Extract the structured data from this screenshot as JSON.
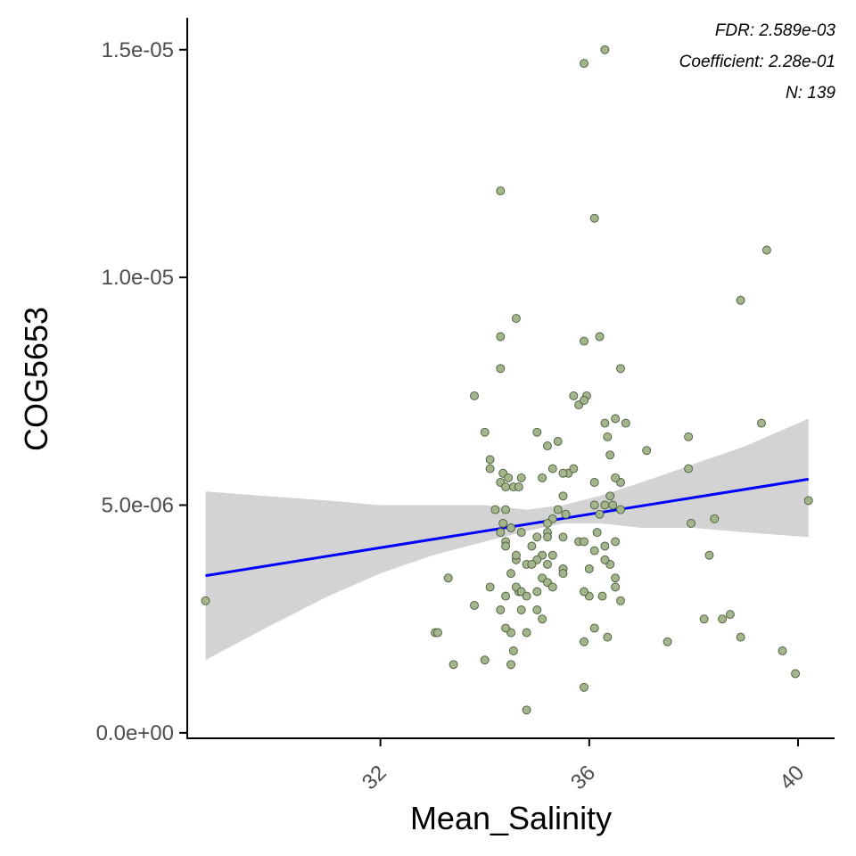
{
  "chart_data": {
    "type": "scatter",
    "xlabel": "Mean_Salinity",
    "ylabel": "COG5653",
    "xlim": [
      28.3,
      40.7
    ],
    "ylim": [
      -1.2e-07,
      1.57e-05
    ],
    "x_ticks": [
      32,
      36,
      40
    ],
    "x_tick_labels": [
      "32",
      "36",
      "40"
    ],
    "y_ticks": [
      0,
      5e-06,
      1e-05,
      1.5e-05
    ],
    "y_tick_labels": [
      "0.0e+00",
      "5.0e-06",
      "1.0e-05",
      "1.5e-05"
    ],
    "grid": false,
    "annotations": [
      "FDR: 2.589e-03",
      "Coefficient: 2.28e-01",
      "N: 139"
    ],
    "colors": {
      "points_fill": "#a3b58c",
      "points_edge": "#4a5a3a",
      "trend_line": "#0000ff",
      "confidence_band": "#d3d3d3",
      "axis": "#000000",
      "tick_label": "#4d4d4d"
    },
    "trend": {
      "x": [
        28.65,
        40.2
      ],
      "y": [
        3.45e-06,
        5.57e-06
      ]
    },
    "confidence_band": {
      "x": [
        28.65,
        29.8,
        31,
        32,
        33,
        34,
        34.8,
        35.5,
        36.2,
        37,
        38,
        39,
        40.2
      ],
      "lower": [
        1.6e-06,
        2.3e-06,
        3e-06,
        3.5e-06,
        3.9e-06,
        4.2e-06,
        4.43e-06,
        4.6e-06,
        4.6e-06,
        4.5e-06,
        4.5e-06,
        4.4e-06,
        4.3e-06
      ],
      "upper": [
        5.3e-06,
        5.2e-06,
        5.1e-06,
        5e-06,
        5e-06,
        5e-06,
        4.9e-06,
        5e-06,
        5.2e-06,
        5.5e-06,
        5.9e-06,
        6.3e-06,
        6.9e-06
      ]
    },
    "points": {
      "x": [
        36.3,
        35.9,
        34.3,
        36.1,
        39.4,
        38.9,
        34.6,
        34.3,
        35.9,
        36.2,
        34.3,
        36.6,
        33.8,
        35.7,
        35.8,
        35.95,
        35.9,
        36.5,
        36.7,
        36.3,
        39.3,
        34.0,
        35.0,
        35.4,
        35.2,
        36.35,
        37.9,
        37.1,
        34.1,
        34.1,
        36.4,
        34.35,
        34.45,
        34.3,
        34.7,
        34.55,
        34.65,
        34.4,
        35.1,
        35.6,
        35.7,
        35.3,
        35.5,
        36.6,
        36.1,
        36.5,
        36.4,
        36.3,
        37.9,
        35.5,
        34.4,
        34.2,
        35.4,
        35.55,
        35.3,
        35.2,
        36.6,
        36.2,
        36.45,
        36.1,
        35.2,
        36.15,
        34.35,
        34.5,
        34.7,
        35.0,
        35.5,
        35.2,
        35.8,
        35.9,
        36.3,
        36.5,
        36.1,
        36.4,
        38.3,
        38.4,
        37.95,
        34.3,
        34.4,
        34.4,
        34.9,
        35.1,
        35.3,
        35.0,
        34.6,
        34.8,
        34.9,
        35.2,
        35.5,
        36.0,
        36.3,
        35.5,
        34.5,
        34.65,
        34.6,
        34.7,
        34.8,
        33.3,
        35.1,
        35.2,
        35.0,
        35.3,
        34.4,
        34.1,
        34.3,
        34.7,
        35.0,
        36.0,
        35.9,
        36.6,
        36.25,
        36.5,
        38.55,
        38.7,
        38.9,
        38.2,
        34.6,
        33.8,
        33.05,
        33.1,
        34.5,
        34.4,
        34.8,
        35.9,
        36.1,
        36.35,
        37.5,
        34.0,
        33.4,
        34.5,
        35.9,
        39.7,
        39.95,
        35.1,
        34.8,
        28.65,
        40.2,
        36.5,
        34.55
      ],
      "y": [
        1.5e-05,
        1.47e-05,
        1.19e-05,
        1.13e-05,
        1.06e-05,
        9.5e-06,
        9.1e-06,
        8.7e-06,
        8.6e-06,
        8.7e-06,
        8e-06,
        8e-06,
        7.4e-06,
        7.4e-06,
        7.2e-06,
        7.4e-06,
        7.3e-06,
        6.9e-06,
        6.8e-06,
        6.8e-06,
        6.8e-06,
        6.6e-06,
        6.6e-06,
        6.4e-06,
        6.3e-06,
        6.5e-06,
        6.5e-06,
        6.2e-06,
        6e-06,
        5.8e-06,
        6.1e-06,
        5.7e-06,
        5.6e-06,
        5.5e-06,
        5.6e-06,
        5.4e-06,
        5.4e-06,
        5.4e-06,
        5.6e-06,
        5.7e-06,
        5.8e-06,
        5.8e-06,
        5.7e-06,
        5.5e-06,
        5.5e-06,
        5.6e-06,
        5.2e-06,
        5e-06,
        5.8e-06,
        5.2e-06,
        4.9e-06,
        4.9e-06,
        4.9e-06,
        4.8e-06,
        4.7e-06,
        4.6e-06,
        4.9e-06,
        4.8e-06,
        5e-06,
        5e-06,
        4.4e-06,
        4.4e-06,
        4.6e-06,
        4.5e-06,
        4.4e-06,
        4.3e-06,
        4.3e-06,
        4.3e-06,
        4.2e-06,
        4.2e-06,
        4.1e-06,
        4.2e-06,
        4e-06,
        3.7e-06,
        3.9e-06,
        4.7e-06,
        4.6e-06,
        4.4e-06,
        4.2e-06,
        4.1e-06,
        4.1e-06,
        3.9e-06,
        3.9e-06,
        3.8e-06,
        3.8e-06,
        3.7e-06,
        3.7e-06,
        3.7e-06,
        3.6e-06,
        3.6e-06,
        3.8e-06,
        3.5e-06,
        3.5e-06,
        3.1e-06,
        3.2e-06,
        3.1e-06,
        3e-06,
        3.4e-06,
        3.4e-06,
        3.3e-06,
        3.1e-06,
        3.2e-06,
        3e-06,
        3.2e-06,
        2.7e-06,
        2.7e-06,
        2.7e-06,
        3e-06,
        3.1e-06,
        2.9e-06,
        3e-06,
        3.2e-06,
        2.5e-06,
        2.6e-06,
        2.1e-06,
        2.5e-06,
        3.9e-06,
        2.8e-06,
        2.2e-06,
        2.2e-06,
        2.2e-06,
        2.3e-06,
        2.2e-06,
        2e-06,
        2.3e-06,
        2.1e-06,
        2e-06,
        1.6e-06,
        1.5e-06,
        1.5e-06,
        1e-06,
        1.8e-06,
        1.3e-06,
        2.5e-06,
        5e-07,
        2.9e-06,
        5.1e-06,
        3.4e-06,
        1.8e-06
      ]
    }
  }
}
